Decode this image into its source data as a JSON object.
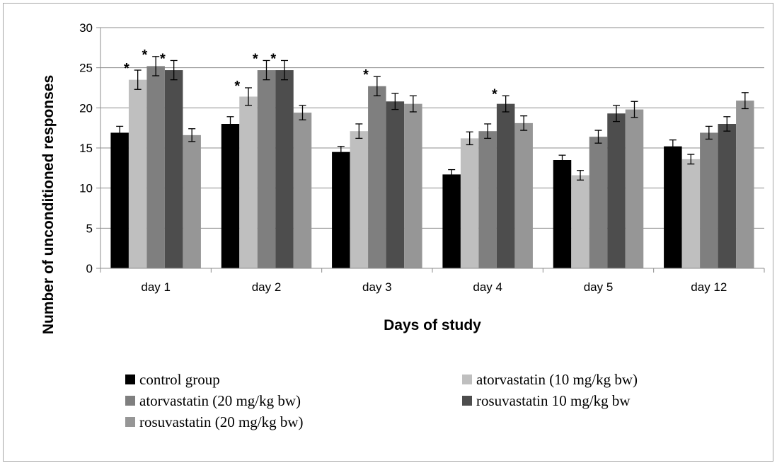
{
  "chart_data": {
    "type": "bar",
    "xlabel": "Days of study",
    "ylabel": "Number of unconditioned responses",
    "ylim": [
      0,
      30
    ],
    "yticks": [
      "0",
      "5",
      "10",
      "15",
      "20",
      "25",
      "30"
    ],
    "grid": true,
    "legend_position": "bottom",
    "categories": [
      "day 1",
      "day 2",
      "day 3",
      "day 4",
      "day 5",
      "day 12"
    ],
    "series": [
      {
        "name": "control group",
        "color": "#000000",
        "values": [
          16.9,
          18.0,
          14.5,
          11.7,
          13.5,
          15.2
        ],
        "errors": [
          0.8,
          0.9,
          0.7,
          0.6,
          0.6,
          0.8
        ],
        "marks": [
          "",
          "",
          "",
          "",
          "",
          ""
        ]
      },
      {
        "name": "atorvastatin (10 mg/kg bw)",
        "color": "#bfbfbf",
        "values": [
          23.5,
          21.4,
          17.1,
          16.2,
          11.6,
          13.6
        ],
        "errors": [
          1.2,
          1.1,
          0.9,
          0.8,
          0.6,
          0.6
        ],
        "marks": [
          "*",
          "*",
          "",
          "",
          "",
          ""
        ]
      },
      {
        "name": "atorvastatin (20 mg/kg bw)",
        "color": "#7f7f7f",
        "values": [
          25.2,
          24.7,
          22.7,
          17.1,
          16.4,
          16.9
        ],
        "errors": [
          1.2,
          1.2,
          1.2,
          0.9,
          0.8,
          0.8
        ],
        "marks": [
          "*",
          "*",
          "*",
          "",
          "",
          ""
        ]
      },
      {
        "name": "rosuvastatin 10 mg/kg bw",
        "color": "#4d4d4d",
        "values": [
          24.7,
          24.7,
          20.8,
          20.5,
          19.3,
          18.0
        ],
        "errors": [
          1.2,
          1.2,
          1.0,
          1.0,
          1.0,
          0.9
        ],
        "marks": [
          "*",
          "*",
          "",
          "*",
          "",
          ""
        ]
      },
      {
        "name": "rosuvastatin (20 mg/kg bw)",
        "color": "#969696",
        "values": [
          16.6,
          19.4,
          20.5,
          18.1,
          19.8,
          20.9
        ],
        "errors": [
          0.8,
          0.9,
          1.0,
          0.9,
          1.0,
          1.0
        ],
        "marks": [
          "",
          "",
          "",
          "",
          "",
          ""
        ]
      }
    ]
  }
}
